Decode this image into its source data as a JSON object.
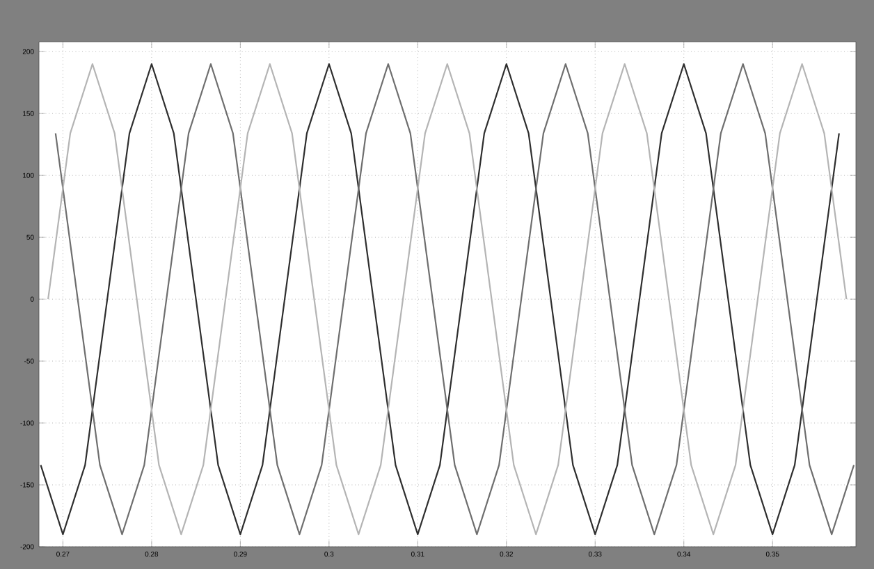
{
  "chart_data": {
    "type": "line",
    "xlim": [
      0.2673,
      0.3594
    ],
    "ylim": [
      -200,
      208
    ],
    "xticks": [
      0.27,
      0.28,
      0.29,
      0.3,
      0.31,
      0.32,
      0.33,
      0.34,
      0.35
    ],
    "yticks": [
      -200,
      -150,
      -100,
      -50,
      0,
      50,
      100,
      150,
      200
    ],
    "grid": true,
    "line_style": "solid",
    "marker": "none",
    "series": [
      {
        "color": "#2e2e2e",
        "x": [
          0.2675,
          0.27,
          0.2725,
          0.275,
          0.2775,
          0.28,
          0.2825,
          0.285,
          0.2875,
          0.29,
          0.2925,
          0.295,
          0.2975,
          0.3,
          0.3025,
          0.305,
          0.3075,
          0.31,
          0.3125,
          0.315,
          0.3175,
          0.32,
          0.3225,
          0.325,
          0.3275,
          0.33,
          0.3325,
          0.335,
          0.3375,
          0.34,
          0.3425,
          0.345,
          0.3475,
          0.35,
          0.3525,
          0.355,
          0.3575
        ],
        "values": [
          -134,
          -190,
          -134,
          0,
          134,
          190,
          134,
          0,
          -134,
          -190,
          -134,
          0,
          134,
          190,
          134,
          0,
          -134,
          -190,
          -134,
          0,
          134,
          190,
          134,
          0,
          -134,
          -190,
          -134,
          0,
          134,
          190,
          134,
          0,
          -134,
          -190,
          -134,
          0,
          134
        ]
      },
      {
        "color": "#6e6e6e",
        "x": [
          0.26917,
          0.27167,
          0.27417,
          0.27667,
          0.27917,
          0.28167,
          0.28417,
          0.28667,
          0.28917,
          0.29167,
          0.29417,
          0.29667,
          0.29917,
          0.30167,
          0.30417,
          0.30667,
          0.30917,
          0.31167,
          0.31417,
          0.31667,
          0.31917,
          0.32167,
          0.32417,
          0.32667,
          0.32917,
          0.33167,
          0.33417,
          0.33667,
          0.33917,
          0.34167,
          0.34417,
          0.34667,
          0.34917,
          0.35167,
          0.35417,
          0.35667,
          0.35917
        ],
        "values": [
          134,
          0,
          -134,
          -190,
          -134,
          0,
          134,
          190,
          134,
          0,
          -134,
          -190,
          -134,
          0,
          134,
          190,
          134,
          0,
          -134,
          -190,
          -134,
          0,
          134,
          190,
          134,
          0,
          -134,
          -190,
          -134,
          0,
          134,
          190,
          134,
          0,
          -134,
          -190,
          -134
        ]
      },
      {
        "color": "#b4b4b4",
        "x": [
          0.26833,
          0.27083,
          0.27333,
          0.27583,
          0.27833,
          0.28083,
          0.28333,
          0.28583,
          0.28833,
          0.29083,
          0.29333,
          0.29583,
          0.29833,
          0.30083,
          0.30333,
          0.30583,
          0.30833,
          0.31083,
          0.31333,
          0.31583,
          0.31833,
          0.32083,
          0.32333,
          0.32583,
          0.32833,
          0.33083,
          0.33333,
          0.33583,
          0.33833,
          0.34083,
          0.34333,
          0.34583,
          0.34833,
          0.35083,
          0.35333,
          0.35583,
          0.35833
        ],
        "values": [
          0,
          134,
          190,
          134,
          0,
          -134,
          -190,
          -134,
          0,
          134,
          190,
          134,
          0,
          -134,
          -190,
          -134,
          0,
          134,
          190,
          134,
          0,
          -134,
          -190,
          -134,
          0,
          134,
          190,
          134,
          0,
          -134,
          -190,
          -134,
          0,
          134,
          190,
          134,
          0
        ]
      }
    ]
  }
}
